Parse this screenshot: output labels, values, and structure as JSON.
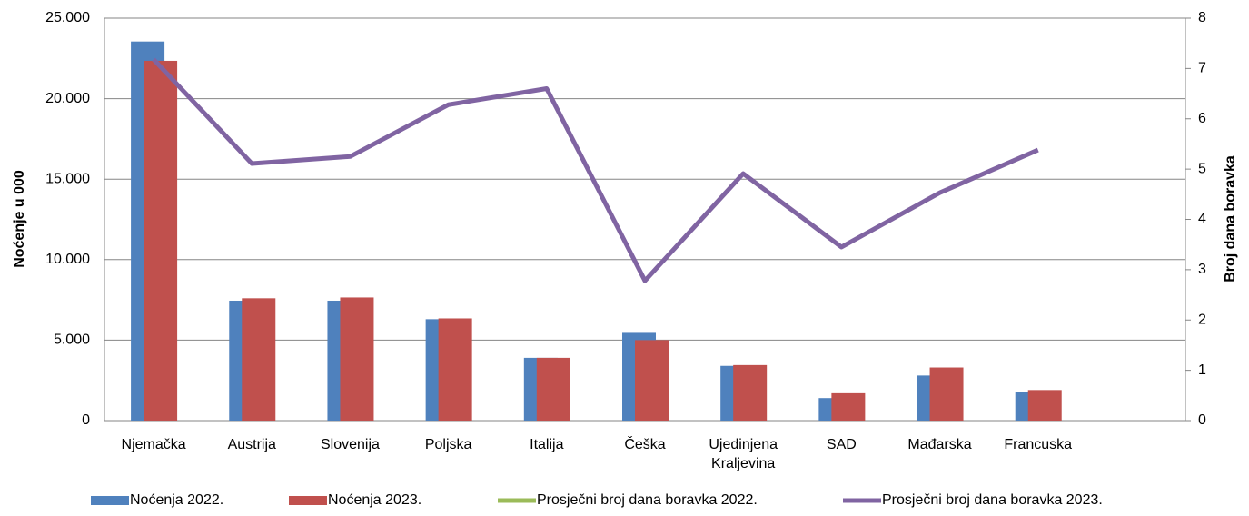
{
  "chart_data": {
    "type": "bar-line",
    "y_label": "Noćenje u 000",
    "y2_label": "Broj dana boravka",
    "categories": [
      "Njemačka",
      "Austrija",
      "Slovenija",
      "Poljska",
      "Italija",
      "Češka",
      "Ujedinjena Kraljevina",
      "SAD",
      "Mađarska",
      "Francuska",
      null
    ],
    "series": [
      {
        "name": "Noćenja 2022.",
        "color": "#4f81bd",
        "kind": "bar",
        "values": [
          23550,
          7450,
          7450,
          6300,
          3900,
          5450,
          3400,
          1400,
          2800,
          1800,
          null
        ]
      },
      {
        "name": "Noćenja 2023.",
        "color": "#c0504d",
        "kind": "bar",
        "values": [
          22350,
          7600,
          7650,
          6350,
          3900,
          5000,
          3450,
          1700,
          3300,
          1900,
          null
        ]
      },
      {
        "name": "Prosječni broj dana boravka 2022.",
        "color": "#9bbb59",
        "kind": "line",
        "axis": "y2",
        "values": [
          null,
          null,
          null,
          null,
          null,
          null,
          null,
          null,
          null,
          null,
          null
        ]
      },
      {
        "name": "Prosječni broj dana boravka 2023.",
        "color": "#8064a2",
        "kind": "line",
        "axis": "y2",
        "values": [
          7.18,
          5.11,
          5.25,
          6.28,
          6.6,
          2.78,
          4.91,
          3.45,
          4.53,
          5.38,
          null
        ]
      }
    ],
    "ylim": [
      0,
      25000
    ],
    "yticks": [
      0,
      {
        "value": 5000,
        "label": "5.000"
      },
      {
        "value": 10000,
        "label": "10.000"
      },
      {
        "value": 15000,
        "label": "15.000"
      },
      {
        "value": 20000,
        "label": "20.000"
      },
      {
        "value": 25000,
        "label": "25.000"
      }
    ],
    "y2lim": [
      0,
      8
    ],
    "y2ticks": [
      0,
      1,
      2,
      3,
      4,
      5,
      6,
      7,
      8
    ],
    "grid": true,
    "legend": "bottom"
  }
}
